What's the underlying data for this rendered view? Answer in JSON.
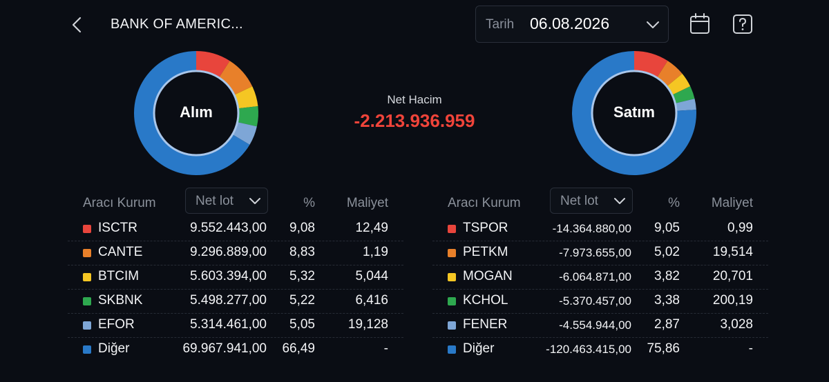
{
  "header": {
    "title": "BANK OF AMERIC...",
    "date_label": "Tarih",
    "date_value": "06.08.2026"
  },
  "colors": {
    "red": "#e8453c",
    "orange": "#e8802a",
    "yellow": "#f5c623",
    "green": "#2ea84f",
    "lightblue": "#7ea6d6",
    "blue": "#2979c8",
    "net_negative": "#f0443a"
  },
  "icons": {
    "back": "chevron-left-icon",
    "date": "chevron-down-icon",
    "calendar": "calendar-icon",
    "help": "help-icon"
  },
  "buy": {
    "label": "Alım",
    "columns": {
      "broker": "Aracı Kurum",
      "sort": "Net lot",
      "pct": "%",
      "cost": "Maliyet"
    },
    "rows": [
      {
        "color": "#e8453c",
        "name": "ISCTR",
        "lot": "9.552.443,00",
        "pct": "9,08",
        "cost": "12,49",
        "share": 9.08
      },
      {
        "color": "#e8802a",
        "name": "CANTE",
        "lot": "9.296.889,00",
        "pct": "8,83",
        "cost": "1,19",
        "share": 8.83
      },
      {
        "color": "#f5c623",
        "name": "BTCIM",
        "lot": "5.603.394,00",
        "pct": "5,32",
        "cost": "5,044",
        "share": 5.32
      },
      {
        "color": "#2ea84f",
        "name": "SKBNK",
        "lot": "5.498.277,00",
        "pct": "5,22",
        "cost": "6,416",
        "share": 5.22
      },
      {
        "color": "#7ea6d6",
        "name": "EFOR",
        "lot": "5.314.461,00",
        "pct": "5,05",
        "cost": "19,128",
        "share": 5.05
      },
      {
        "color": "#2979c8",
        "name": "Diğer",
        "lot": "69.967.941,00",
        "pct": "66,49",
        "cost": "-",
        "share": 66.49
      }
    ]
  },
  "net": {
    "label": "Net Hacim",
    "value": "-2.213.936.959"
  },
  "sell": {
    "label": "Satım",
    "columns": {
      "broker": "Aracı Kurum",
      "sort": "Net lot",
      "pct": "%",
      "cost": "Maliyet"
    },
    "rows": [
      {
        "color": "#e8453c",
        "name": "TSPOR",
        "lot": "-14.364.880,00",
        "pct": "9,05",
        "cost": "0,99",
        "share": 9.05
      },
      {
        "color": "#e8802a",
        "name": "PETKM",
        "lot": "-7.973.655,00",
        "pct": "5,02",
        "cost": "19,514",
        "share": 5.02
      },
      {
        "color": "#f5c623",
        "name": "MOGAN",
        "lot": "-6.064.871,00",
        "pct": "3,82",
        "cost": "20,701",
        "share": 3.82
      },
      {
        "color": "#2ea84f",
        "name": "KCHOL",
        "lot": "-5.370.457,00",
        "pct": "3,38",
        "cost": "200,19",
        "share": 3.38
      },
      {
        "color": "#7ea6d6",
        "name": "FENER",
        "lot": "-4.554.944,00",
        "pct": "2,87",
        "cost": "3,028",
        "share": 2.87
      },
      {
        "color": "#2979c8",
        "name": "Diğer",
        "lot": "-120.463.415,00",
        "pct": "75,86",
        "cost": "-",
        "share": 75.86
      }
    ]
  }
}
